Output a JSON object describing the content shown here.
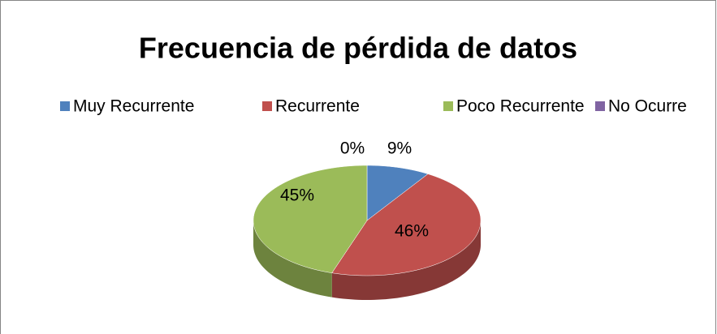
{
  "chart_data": {
    "type": "pie3d",
    "title": "Frecuencia de pérdida de datos",
    "categories": [
      "Muy Recurrente",
      "Recurrente",
      "Poco Recurrente",
      "No Ocurre"
    ],
    "values": [
      9,
      46,
      45,
      0
    ],
    "value_labels": [
      "9%",
      "46%",
      "45%",
      "0%"
    ],
    "colors": [
      "#4f81bd",
      "#c0504d",
      "#9bbb59",
      "#8064a2"
    ],
    "legend": "top"
  }
}
